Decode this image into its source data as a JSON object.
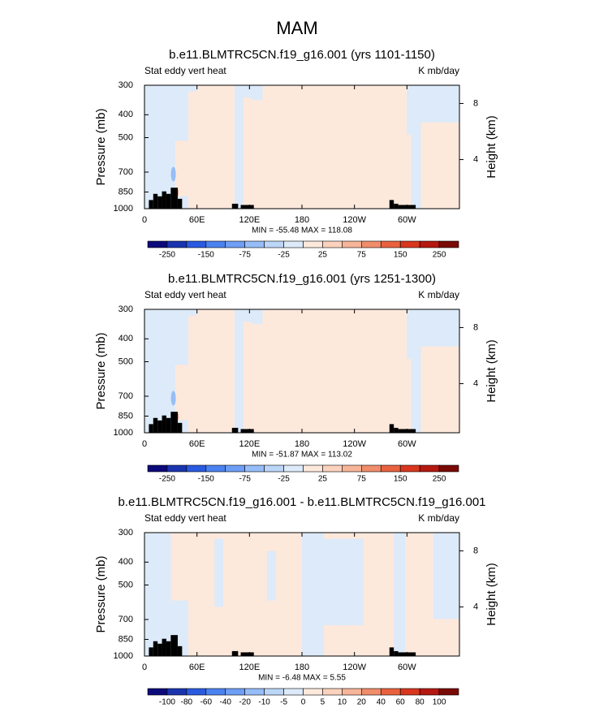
{
  "title": "MAM",
  "chart_data": [
    {
      "type": "contour",
      "title": "b.e11.BLMTRC5CN.f19_g16.001 (yrs 1101-1150)",
      "left_subtitle": "Stat eddy vert heat",
      "right_subtitle": "K mb/day",
      "ylabel": "Pressure (mb)",
      "y2label": "Height (km)",
      "ylim": [
        1000,
        300
      ],
      "log_y": true,
      "yticks": [
        300,
        400,
        500,
        700,
        850,
        1000
      ],
      "y2lim": [
        0.5,
        9.3
      ],
      "y2ticks": [
        4,
        8
      ],
      "xlim": [
        0,
        360
      ],
      "xticks": [
        0,
        {
          "value": 60,
          "label": "60E"
        },
        {
          "value": 120,
          "label": "120E"
        },
        180,
        {
          "value": 240,
          "label": "120W"
        },
        {
          "value": 300,
          "label": "60W"
        }
      ],
      "minmax_text": "MIN = -55.48  MAX = 118.08",
      "colorbar": {
        "colors": [
          "#0c0a7a",
          "#1a34b0",
          "#2a5ae0",
          "#4a82f0",
          "#6e9ef5",
          "#96bdf7",
          "#bcd6f8",
          "#dceaf9",
          "#fde8dc",
          "#fbd2bd",
          "#f6b498",
          "#f08d6a",
          "#e8623f",
          "#d8371e",
          "#b5180f",
          "#7a0a06"
        ],
        "ticks": [
          -250,
          -150,
          -75,
          -25,
          25,
          75,
          150,
          250
        ]
      }
    },
    {
      "type": "contour",
      "title": "b.e11.BLMTRC5CN.f19_g16.001 (yrs 1251-1300)",
      "left_subtitle": "Stat eddy vert heat",
      "right_subtitle": "K mb/day",
      "ylabel": "Pressure (mb)",
      "y2label": "Height (km)",
      "ylim": [
        1000,
        300
      ],
      "log_y": true,
      "yticks": [
        300,
        400,
        500,
        700,
        850,
        1000
      ],
      "y2lim": [
        0.5,
        9.3
      ],
      "y2ticks": [
        4,
        8
      ],
      "xlim": [
        0,
        360
      ],
      "xticks": [
        0,
        {
          "value": 60,
          "label": "60E"
        },
        {
          "value": 120,
          "label": "120E"
        },
        180,
        {
          "value": 240,
          "label": "120W"
        },
        {
          "value": 300,
          "label": "60W"
        }
      ],
      "minmax_text": "MIN = -51.87  MAX = 113.02",
      "colorbar": {
        "colors": [
          "#0c0a7a",
          "#1a34b0",
          "#2a5ae0",
          "#4a82f0",
          "#6e9ef5",
          "#96bdf7",
          "#bcd6f8",
          "#dceaf9",
          "#fde8dc",
          "#fbd2bd",
          "#f6b498",
          "#f08d6a",
          "#e8623f",
          "#d8371e",
          "#b5180f",
          "#7a0a06"
        ],
        "ticks": [
          -250,
          -150,
          -75,
          -25,
          25,
          75,
          150,
          250
        ]
      }
    },
    {
      "type": "contour",
      "title": "b.e11.BLMTRC5CN.f19_g16.001 - b.e11.BLMTRC5CN.f19_g16.001",
      "left_subtitle": "Stat eddy vert heat",
      "right_subtitle": "K mb/day",
      "ylabel": "Pressure (mb)",
      "y2label": "Height (km)",
      "ylim": [
        1000,
        300
      ],
      "log_y": true,
      "yticks": [
        300,
        400,
        500,
        700,
        850,
        1000
      ],
      "y2lim": [
        0.5,
        9.3
      ],
      "y2ticks": [
        4,
        8
      ],
      "xlim": [
        0,
        360
      ],
      "xticks": [
        0,
        {
          "value": 60,
          "label": "60E"
        },
        {
          "value": 120,
          "label": "120E"
        },
        180,
        {
          "value": 240,
          "label": "120W"
        },
        {
          "value": 300,
          "label": "60W"
        }
      ],
      "minmax_text": "MIN =  -6.48  MAX =   5.55",
      "colorbar": {
        "colors": [
          "#0c0a7a",
          "#1a34b0",
          "#2a5ae0",
          "#4a82f0",
          "#6e9ef5",
          "#96bdf7",
          "#bcd6f8",
          "#dceaf9",
          "#fde8dc",
          "#fbd2bd",
          "#f6b498",
          "#f08d6a",
          "#e8623f",
          "#d8371e",
          "#b5180f",
          "#7a0a06"
        ],
        "ticks": [
          -100,
          -80,
          -60,
          -40,
          -20,
          -10,
          -5,
          0,
          5,
          10,
          20,
          40,
          60,
          80,
          100
        ]
      }
    }
  ]
}
